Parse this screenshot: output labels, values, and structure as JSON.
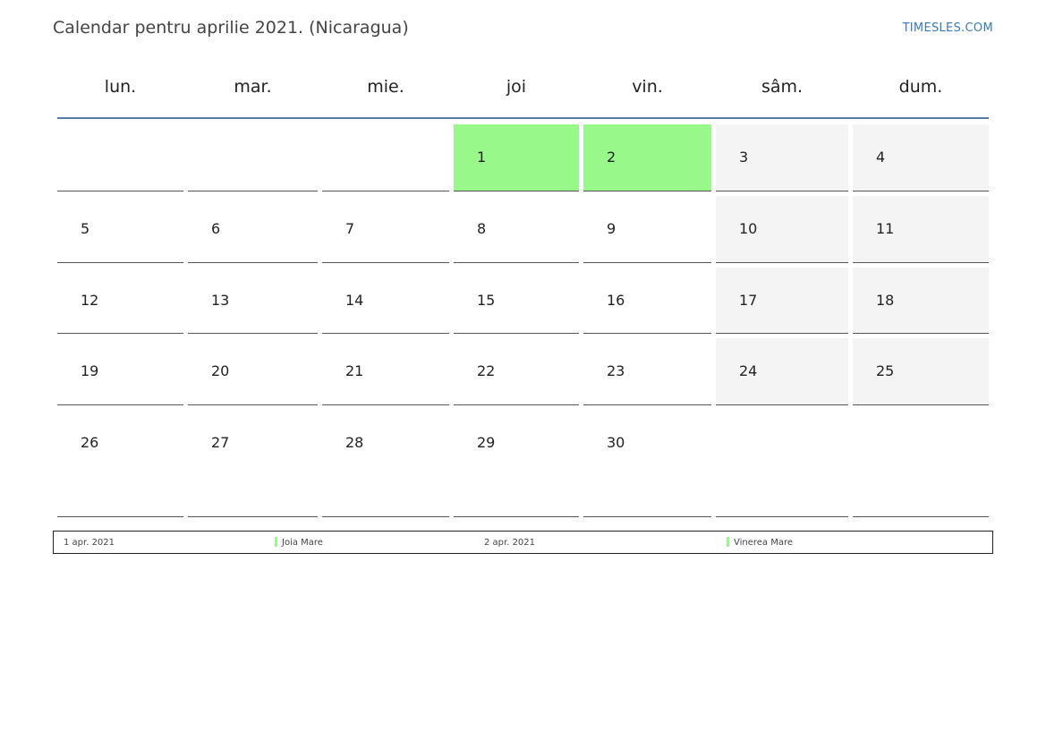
{
  "title": "Calendar pentru aprilie 2021. (Nicaragua)",
  "brand": "TIMESLES.COM",
  "colors": {
    "holiday": "#99f88a",
    "weekend": "#f4f4f4",
    "rule": "#5b7aa0",
    "brand": "#3a7ab8"
  },
  "weekdays": [
    "lun.",
    "mar.",
    "mie.",
    "joi",
    "vin.",
    "sâm.",
    "dum."
  ],
  "weeks": [
    [
      {
        "day": ""
      },
      {
        "day": ""
      },
      {
        "day": ""
      },
      {
        "day": "1",
        "type": "holiday"
      },
      {
        "day": "2",
        "type": "holiday"
      },
      {
        "day": "3",
        "type": "weekend"
      },
      {
        "day": "4",
        "type": "weekend"
      }
    ],
    [
      {
        "day": "5"
      },
      {
        "day": "6"
      },
      {
        "day": "7"
      },
      {
        "day": "8"
      },
      {
        "day": "9"
      },
      {
        "day": "10",
        "type": "weekend"
      },
      {
        "day": "11",
        "type": "weekend"
      }
    ],
    [
      {
        "day": "12"
      },
      {
        "day": "13"
      },
      {
        "day": "14"
      },
      {
        "day": "15"
      },
      {
        "day": "16"
      },
      {
        "day": "17",
        "type": "weekend"
      },
      {
        "day": "18",
        "type": "weekend"
      }
    ],
    [
      {
        "day": "19"
      },
      {
        "day": "20"
      },
      {
        "day": "21"
      },
      {
        "day": "22"
      },
      {
        "day": "23"
      },
      {
        "day": "24",
        "type": "weekend"
      },
      {
        "day": "25",
        "type": "weekend"
      }
    ],
    [
      {
        "day": "26"
      },
      {
        "day": "27"
      },
      {
        "day": "28"
      },
      {
        "day": "29"
      },
      {
        "day": "30"
      },
      {
        "day": ""
      },
      {
        "day": ""
      }
    ]
  ],
  "holidays": [
    {
      "date": "1 apr. 2021",
      "name": "Joia Mare"
    },
    {
      "date": "2 apr. 2021",
      "name": "Vinerea Mare"
    }
  ]
}
